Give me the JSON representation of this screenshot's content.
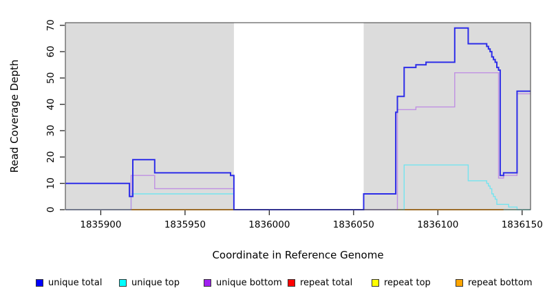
{
  "chart_data": {
    "type": "line",
    "subtype": "step-coverage-plot",
    "title": "",
    "xlabel": "Coordinate in Reference Genome",
    "ylabel": "Read Coverage Depth",
    "xlim": [
      1835879,
      1836155
    ],
    "ylim": [
      0,
      71
    ],
    "x_ticks": [
      {
        "value": 1835900,
        "label": "1835900"
      },
      {
        "value": 1835950,
        "label": "1835950"
      },
      {
        "value": 1836000,
        "label": "1836000"
      },
      {
        "value": 1836050,
        "label": "1836050"
      },
      {
        "value": 1836100,
        "label": "1836100"
      },
      {
        "value": 1836150,
        "label": "1836150"
      }
    ],
    "y_ticks": [
      {
        "value": 0,
        "label": "0"
      },
      {
        "value": 10,
        "label": "10"
      },
      {
        "value": 20,
        "label": "20"
      },
      {
        "value": 30,
        "label": "30"
      },
      {
        "value": 40,
        "label": "40"
      },
      {
        "value": 50,
        "label": "50"
      },
      {
        "value": 60,
        "label": "60"
      },
      {
        "value": 70,
        "label": "70"
      }
    ],
    "shaded_regions": [
      {
        "x1": 1835879,
        "x2": 1835979,
        "color": "#dcdcdc",
        "meaning": "covered-region-shading"
      },
      {
        "x1": 1836056,
        "x2": 1836155,
        "color": "#dcdcdc",
        "meaning": "covered-region-shading"
      }
    ],
    "grid": false,
    "legend_position": "bottom",
    "series": [
      {
        "name": "unique top",
        "line_color": "#74e4ef",
        "line_width": 1.4,
        "points": [
          [
            1835879,
            0
          ],
          [
            1835918,
            6
          ],
          [
            1835979,
            0
          ],
          [
            1836080,
            17
          ],
          [
            1836118,
            11
          ],
          [
            1836129,
            10
          ],
          [
            1836130,
            9
          ],
          [
            1836131,
            8
          ],
          [
            1836132,
            6
          ],
          [
            1836133,
            5
          ],
          [
            1836134,
            4
          ],
          [
            1836135,
            2
          ],
          [
            1836142,
            1
          ],
          [
            1836147,
            0
          ],
          [
            1836155,
            0
          ]
        ]
      },
      {
        "name": "unique bottom",
        "line_color": "#bf8fe2",
        "line_width": 1.4,
        "points": [
          [
            1835879,
            0
          ],
          [
            1835918,
            13
          ],
          [
            1835932,
            8
          ],
          [
            1835979,
            0
          ],
          [
            1836076,
            38
          ],
          [
            1836087,
            39
          ],
          [
            1836110,
            52
          ],
          [
            1836136,
            12
          ],
          [
            1836139,
            13
          ],
          [
            1836147,
            44
          ],
          [
            1836155,
            44
          ]
        ]
      },
      {
        "name": "unique total",
        "line_color": "#2c2ce8",
        "line_width": 2,
        "points": [
          [
            1835879,
            10
          ],
          [
            1835917,
            5
          ],
          [
            1835919,
            19
          ],
          [
            1835932,
            14
          ],
          [
            1835977,
            13
          ],
          [
            1835979,
            0
          ],
          [
            1836056,
            6
          ],
          [
            1836075,
            37
          ],
          [
            1836076,
            43
          ],
          [
            1836080,
            54
          ],
          [
            1836087,
            55
          ],
          [
            1836093,
            56
          ],
          [
            1836110,
            69
          ],
          [
            1836118,
            63
          ],
          [
            1836129,
            62
          ],
          [
            1836130,
            61
          ],
          [
            1836131,
            60
          ],
          [
            1836132,
            58
          ],
          [
            1836133,
            57
          ],
          [
            1836134,
            56
          ],
          [
            1836135,
            54
          ],
          [
            1836136,
            53
          ],
          [
            1836137,
            13
          ],
          [
            1836139,
            14
          ],
          [
            1836147,
            45
          ],
          [
            1836155,
            45
          ]
        ]
      }
    ],
    "baseline_segments": [
      {
        "x1": 1835879,
        "x2": 1835918,
        "color": "#8fd39a",
        "width": 1.6,
        "meaning": "zero-coverage overlap (unique top over repeat top)"
      },
      {
        "x1": 1835918,
        "x2": 1835979,
        "color": "#ff9f1a",
        "width": 2,
        "meaning": "repeat bottom at 0"
      },
      {
        "x1": 1836056,
        "x2": 1836075,
        "color": "#dd4f66",
        "width": 1.6,
        "meaning": "repeat total at 0"
      },
      {
        "x1": 1836075,
        "x2": 1836139,
        "color": "#ff9f1a",
        "width": 2,
        "meaning": "repeat bottom at 0"
      },
      {
        "x1": 1836139,
        "x2": 1836155,
        "color": "#8fd39a",
        "width": 1.6,
        "meaning": "zero-coverage overlap (unique top over repeat top)"
      }
    ],
    "legend": [
      {
        "label": "unique total",
        "color": "#0000ff"
      },
      {
        "label": "unique top",
        "color": "#00ffff"
      },
      {
        "label": "unique bottom",
        "color": "#a020f0"
      },
      {
        "label": "repeat total",
        "color": "#ff0000"
      },
      {
        "label": "repeat top",
        "color": "#ffff00"
      },
      {
        "label": "repeat bottom",
        "color": "#ffa500"
      }
    ]
  }
}
